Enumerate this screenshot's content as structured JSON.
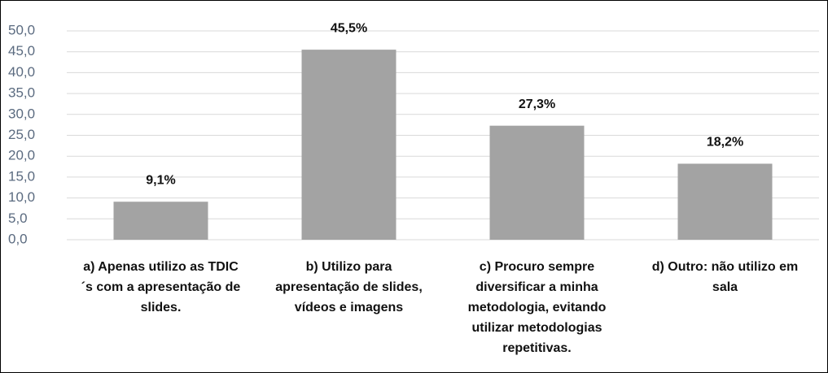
{
  "chart_data": {
    "type": "bar",
    "categories": [
      "a)    Apenas utilizo as TDIC´s com a apresentação de slides.",
      "b)    Utilizo para apresentação de slides, vídeos e imagens",
      "c)    Procuro sempre diversificar a minha metodologia, evitando utilizar metodologias repetitivas.",
      "d) Outro: não utilizo em sala"
    ],
    "values": [
      9.1,
      45.5,
      27.3,
      18.2
    ],
    "value_labels": [
      "9,1%",
      "45,5%",
      "27,3%",
      "18,2%"
    ],
    "color": "#a3a3a3",
    "ylim": [
      0,
      50
    ],
    "yticks": [
      {
        "value": 0,
        "label": "0,0"
      },
      {
        "value": 5,
        "label": "5,0"
      },
      {
        "value": 10,
        "label": "10,0"
      },
      {
        "value": 15,
        "label": "15,0"
      },
      {
        "value": 20,
        "label": "20,0"
      },
      {
        "value": 25,
        "label": "25,0"
      },
      {
        "value": 30,
        "label": "30,0"
      },
      {
        "value": 35,
        "label": "35,0"
      },
      {
        "value": 40,
        "label": "40,0"
      },
      {
        "value": 45,
        "label": "45,0"
      },
      {
        "value": 50,
        "label": "50,0"
      }
    ],
    "grid": true
  }
}
